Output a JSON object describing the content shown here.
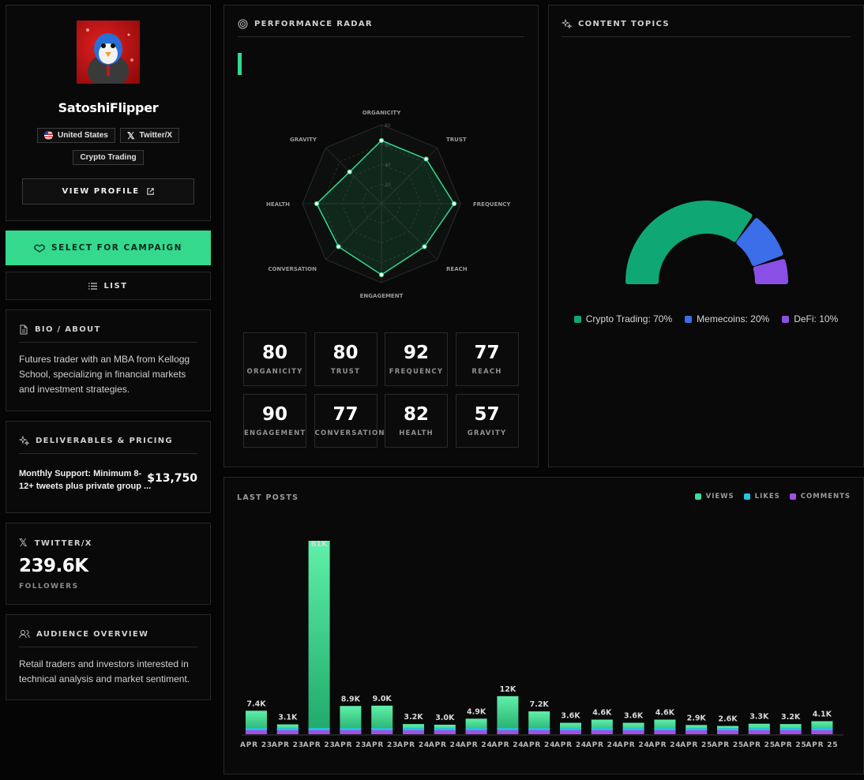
{
  "profile": {
    "name": "SatoshiFlipper",
    "country": "United States",
    "platform": "Twitter/X",
    "category": "Crypto Trading",
    "view_profile_label": "VIEW PROFILE"
  },
  "actions": {
    "select_label": "SELECT FOR CAMPAIGN",
    "list_label": "LIST"
  },
  "bio": {
    "title": "BIO / ABOUT",
    "text": "Futures trader with an MBA from Kellogg School, specializing in financial markets and investment strategies."
  },
  "deliverables": {
    "title": "DELIVERABLES & PRICING",
    "item": "Monthly Support: Minimum 8-12+ tweets plus private group ...",
    "price": "$13,750"
  },
  "twitter": {
    "title": "TWITTER/X",
    "followers": "239.6K",
    "followers_label": "FOLLOWERS"
  },
  "audience": {
    "title": "AUDIENCE OVERVIEW",
    "text": "Retail traders and investors interested in technical analysis and market sentiment."
  },
  "radar": {
    "title": "PERFORMANCE RADAR",
    "ticks": [
      "20",
      "40",
      "60",
      "80"
    ],
    "axes": [
      {
        "label": "ORGANICITY",
        "value": 80
      },
      {
        "label": "TRUST",
        "value": 80
      },
      {
        "label": "FREQUENCY",
        "value": 92
      },
      {
        "label": "REACH",
        "value": 77
      },
      {
        "label": "ENGAGEMENT",
        "value": 90
      },
      {
        "label": "CONVERSATION",
        "value": 77
      },
      {
        "label": "HEALTH",
        "value": 82
      },
      {
        "label": "GRAVITY",
        "value": 57
      }
    ]
  },
  "scores": [
    {
      "value": "80",
      "label": "ORGANICITY"
    },
    {
      "value": "80",
      "label": "TRUST"
    },
    {
      "value": "92",
      "label": "FREQUENCY"
    },
    {
      "value": "77",
      "label": "REACH"
    },
    {
      "value": "90",
      "label": "ENGAGEMENT"
    },
    {
      "value": "77",
      "label": "CONVERSATION"
    },
    {
      "value": "82",
      "label": "HEALTH"
    },
    {
      "value": "57",
      "label": "GRAVITY"
    }
  ],
  "topics": {
    "title": "CONTENT TOPICS",
    "items": [
      {
        "label": "Crypto Trading: 70%",
        "name": "Crypto Trading",
        "percent": 70,
        "color": "#0fa874"
      },
      {
        "label": "Memecoins: 20%",
        "name": "Memecoins",
        "percent": 20,
        "color": "#3b6ee8"
      },
      {
        "label": "DeFi: 10%",
        "name": "DeFi",
        "percent": 10,
        "color": "#8a4fe6"
      }
    ]
  },
  "posts": {
    "title": "LAST POSTS",
    "legend": [
      {
        "label": "VIEWS",
        "color": "#3ddc97"
      },
      {
        "label": "LIKES",
        "color": "#22c4e0"
      },
      {
        "label": "COMMENTS",
        "color": "#a24fe6"
      }
    ]
  },
  "chart_data": {
    "type": "bar",
    "title": "LAST POSTS",
    "categories": [
      "APR 23",
      "APR 23",
      "APR 23",
      "APR 23",
      "APR 23",
      "APR 24",
      "APR 24",
      "APR 24",
      "APR 24",
      "APR 24",
      "APR 24",
      "APR 24",
      "APR 24",
      "APR 24",
      "APR 25",
      "APR 25",
      "APR 25",
      "APR 25",
      "APR 25"
    ],
    "series": [
      {
        "name": "VIEWS",
        "values": [
          7400,
          3100,
          61000,
          8900,
          9000,
          3200,
          3000,
          4900,
          12000,
          7200,
          3600,
          4600,
          3600,
          4600,
          2900,
          2600,
          3300,
          3200,
          4100
        ]
      }
    ],
    "value_labels": [
      "7.4K",
      "3.1K",
      "61K",
      "8.9K",
      "9.0K",
      "3.2K",
      "3.0K",
      "4.9K",
      "12K",
      "7.2K",
      "3.6K",
      "4.6K",
      "3.6K",
      "4.6K",
      "2.9K",
      "2.6K",
      "3.3K",
      "3.2K",
      "4.1K"
    ],
    "legend": [
      "VIEWS",
      "LIKES",
      "COMMENTS"
    ],
    "legend_position": "top-right",
    "grid": false
  }
}
